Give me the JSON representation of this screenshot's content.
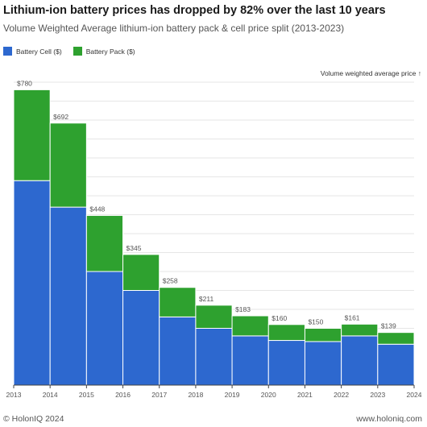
{
  "header": {
    "title": "Lithium-ion battery prices has dropped by 82% over the last 10 years",
    "subtitle": "Volume Weighted Average lithium-ion battery pack & cell price split (2013-2023)"
  },
  "footer": {
    "copyright": "© HolonIQ 2024",
    "website": "www.holoniq.com"
  },
  "colors": {
    "cell": "#2d68cf",
    "pack": "#2ea12f",
    "grid": "#e6e6e6",
    "axis": "#444444",
    "label": "#555555"
  },
  "chart_data": {
    "type": "bar",
    "stacked": true,
    "title": "Lithium-ion battery prices has dropped by 82% over the last 10 years",
    "subtitle": "Volume Weighted Average lithium-ion battery pack & cell price split (2013-2023)",
    "axis_note": "Volume weighted average price ↑",
    "legend_position": "top-left",
    "grid": true,
    "categories": [
      "2013",
      "2014",
      "2015",
      "2016",
      "2017",
      "2018",
      "2019",
      "2020",
      "2021",
      "2022",
      "2023"
    ],
    "x_ticks": [
      "2013",
      "2014",
      "2015",
      "2016",
      "2017",
      "2018",
      "2019",
      "2020",
      "2021",
      "2022",
      "2023",
      "2024"
    ],
    "totals": [
      780,
      692,
      448,
      345,
      258,
      211,
      183,
      160,
      150,
      161,
      139
    ],
    "total_labels": [
      "$780",
      "$692",
      "$448",
      "$345",
      "$258",
      "$211",
      "$183",
      "$160",
      "$150",
      "$161",
      "$139"
    ],
    "series": [
      {
        "name": "Battery Cell ($)",
        "values": [
          540,
          470,
          300,
          250,
          180,
          150,
          130,
          118,
          115,
          130,
          108
        ]
      },
      {
        "name": "Battery Pack ($)",
        "values": [
          240,
          222,
          148,
          95,
          78,
          61,
          53,
          42,
          35,
          31,
          31
        ]
      }
    ],
    "ylim": [
      0,
      800
    ]
  }
}
